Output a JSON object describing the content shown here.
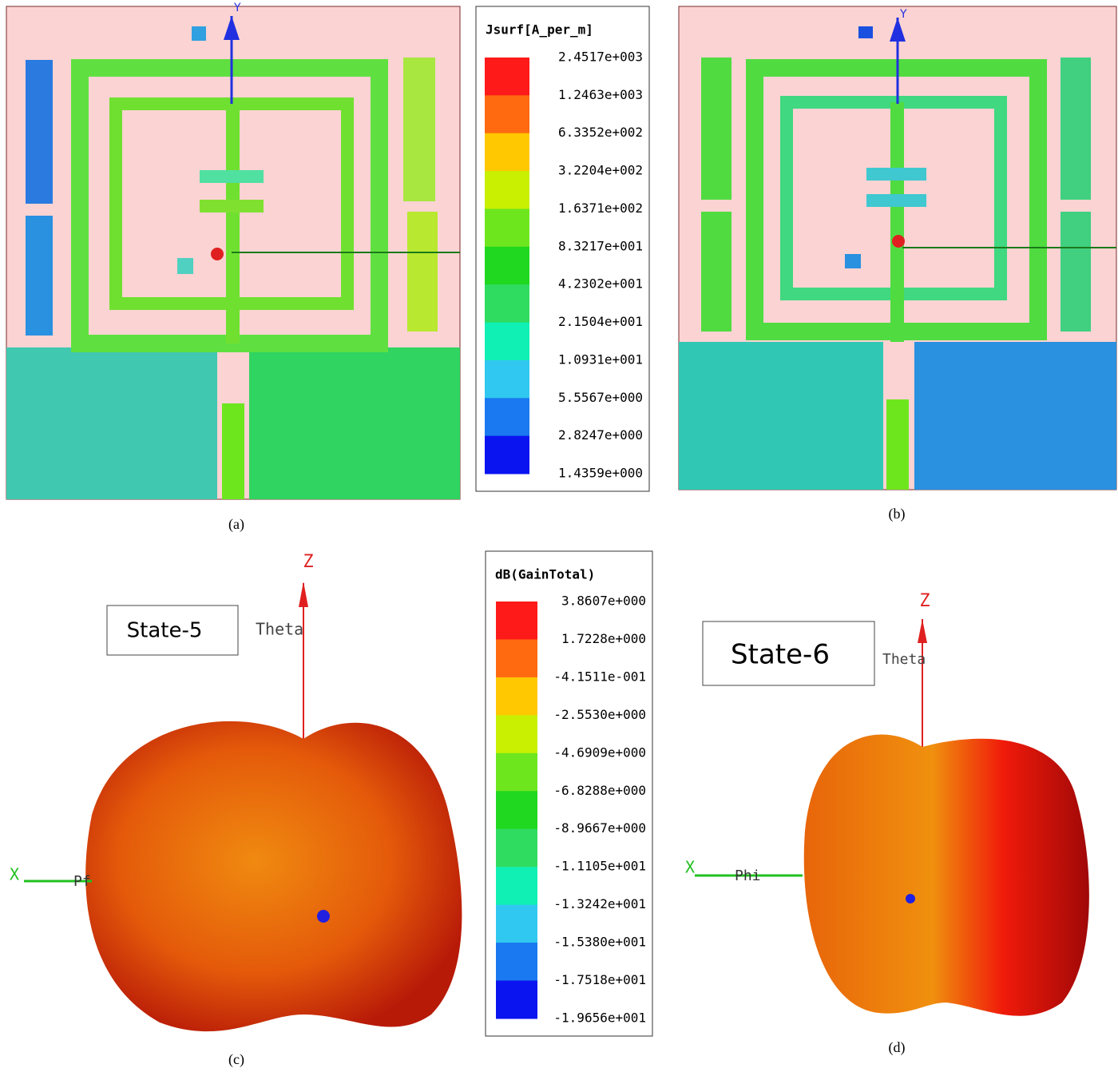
{
  "panels": [
    {
      "caption": "(a)",
      "axis_y": "Y"
    },
    {
      "caption": "(b)",
      "axis_y": "Y"
    },
    {
      "caption": "(c)",
      "state": "State-5",
      "axis_z": "Z",
      "axis_x": "X",
      "theta": "Theta",
      "phi": "Pf"
    },
    {
      "caption": "(d)",
      "state": "State-6",
      "axis_z": "Z",
      "axis_x": "X",
      "theta": "Theta",
      "phi": "Phi"
    }
  ],
  "legends": [
    {
      "title": "Jsurf[A_per_m]",
      "labels": [
        "2.4517e+003",
        "1.2463e+003",
        "6.3352e+002",
        "3.2204e+002",
        "1.6371e+002",
        "8.3217e+001",
        "4.2302e+001",
        "2.1504e+001",
        "1.0931e+001",
        "5.5567e+000",
        "2.8247e+000",
        "1.4359e+000"
      ],
      "colors": [
        "#ff1a1a",
        "#ff6a10",
        "#ffc800",
        "#c8f000",
        "#6ee61e",
        "#20d820",
        "#30dc60",
        "#10f0b4",
        "#30c8f0",
        "#1a78f0",
        "#0a14f0"
      ]
    },
    {
      "title": "dB(GainTotal)",
      "labels": [
        "3.8607e+000",
        "1.7228e+000",
        "-4.1511e-001",
        "-2.5530e+000",
        "-4.6909e+000",
        "-6.8288e+000",
        "-8.9667e+000",
        "-1.1105e+001",
        "-1.3242e+001",
        "-1.5380e+001",
        "-1.7518e+001",
        "-1.9656e+001"
      ],
      "colors": [
        "#ff1a1a",
        "#ff6a10",
        "#ffc800",
        "#c8f000",
        "#6ee61e",
        "#20d820",
        "#30dc60",
        "#10f0b4",
        "#30c8f0",
        "#1a78f0",
        "#0a14f0"
      ]
    }
  ]
}
